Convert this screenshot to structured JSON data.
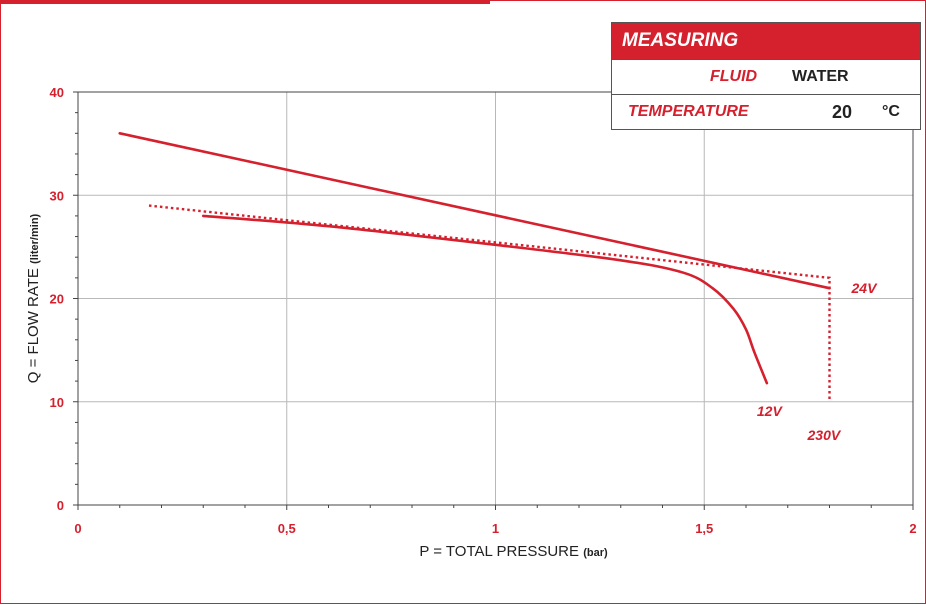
{
  "measuring": {
    "title": "MEASURING",
    "fluid_label": "FLUID",
    "fluid_value": "WATER",
    "temperature_label": "TEMPERATURE",
    "temperature_value": "20",
    "temperature_unit": "°C"
  },
  "colors": {
    "accent": "#d5202e",
    "grid": "#b8b8b8",
    "axis": "#444444",
    "text": "#222222"
  },
  "chart_data": {
    "type": "line",
    "title": "",
    "xlabel": "P = TOTAL PRESSURE",
    "xlabel_unit": "(bar)",
    "ylabel": "Q = FLOW RATE",
    "ylabel_unit": "(liter/min)",
    "xlim": [
      0,
      2
    ],
    "ylim": [
      0,
      40
    ],
    "x_ticks": [
      0,
      0.5,
      1,
      1.5,
      2
    ],
    "x_tick_labels": [
      "0",
      "0,5",
      "1",
      "1,5",
      "2"
    ],
    "y_ticks": [
      0,
      10,
      20,
      30,
      40
    ],
    "y_tick_labels": [
      "0",
      "10",
      "20",
      "30",
      "40"
    ],
    "grid": true,
    "series": [
      {
        "name": "24V",
        "style": "solid",
        "points": [
          [
            0.1,
            36
          ],
          [
            1.8,
            21
          ]
        ]
      },
      {
        "name": "12V",
        "style": "solid",
        "points": [
          [
            0.3,
            28
          ],
          [
            0.6,
            27
          ],
          [
            1.0,
            25.2
          ],
          [
            1.3,
            23.7
          ],
          [
            1.45,
            22.5
          ],
          [
            1.52,
            21.0
          ],
          [
            1.57,
            19.0
          ],
          [
            1.6,
            17.0
          ],
          [
            1.62,
            14.8
          ],
          [
            1.65,
            11.8
          ]
        ]
      },
      {
        "name": "230V",
        "style": "dotted",
        "points": [
          [
            0.17,
            29
          ],
          [
            1.8,
            22
          ],
          [
            1.8,
            10
          ]
        ]
      }
    ]
  }
}
